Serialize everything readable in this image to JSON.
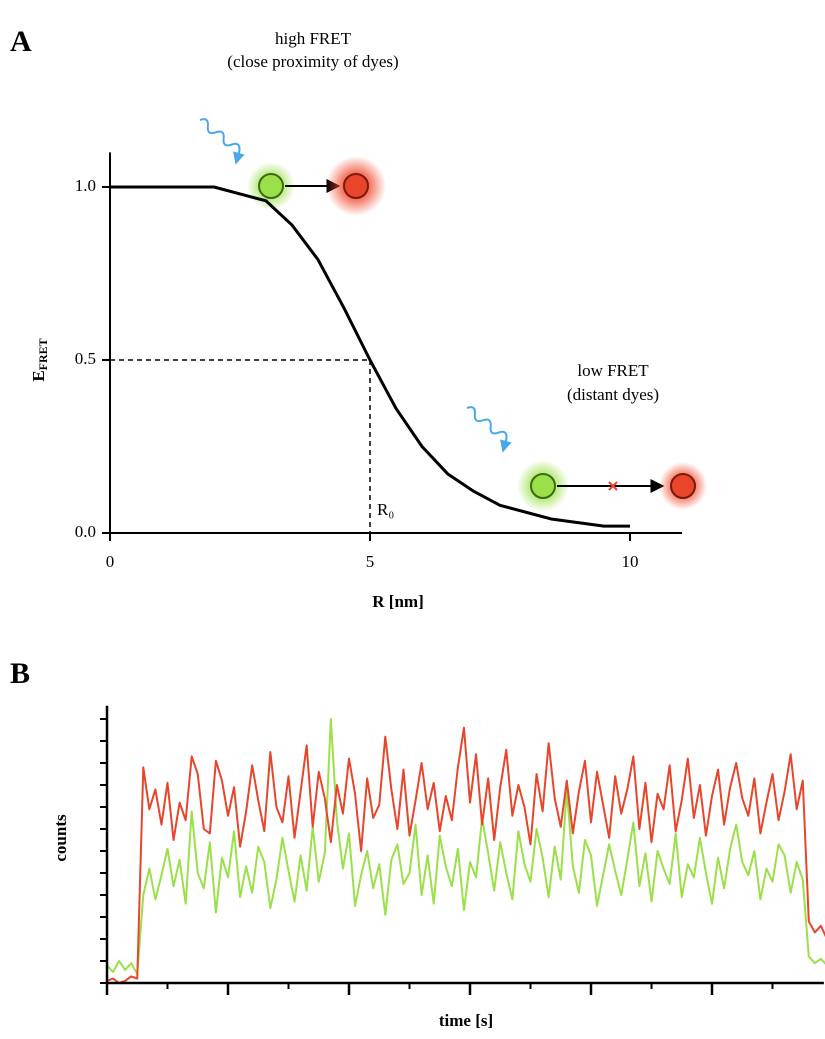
{
  "chart_data": [
    {
      "type": "line",
      "panel_label": "A",
      "xlabel": "R [nm]",
      "ylabel": "E",
      "ylabel_subscript": "FRET",
      "x": [
        0,
        0.5,
        1,
        1.5,
        2,
        2.5,
        3,
        3.5,
        4,
        4.5,
        5,
        5.5,
        6,
        6.5,
        7,
        7.5,
        8,
        8.5,
        9,
        9.5,
        10
      ],
      "series": [
        {
          "color": "#000000",
          "values": [
            1.0,
            1.0,
            1.0,
            1.0,
            1.0,
            0.98,
            0.96,
            0.89,
            0.79,
            0.65,
            0.5,
            0.36,
            0.25,
            0.17,
            0.12,
            0.08,
            0.06,
            0.04,
            0.03,
            0.02,
            0.02
          ]
        }
      ],
      "xlim": [
        0,
        11
      ],
      "ylim": [
        0,
        1.1
      ],
      "xticks": [
        0,
        5,
        10
      ],
      "yticks": [
        {
          "value": 0,
          "label": "0.0"
        },
        0.5,
        {
          "value": 1,
          "label": "1.0"
        }
      ],
      "reference": {
        "x": 5,
        "y": 0.5,
        "label": "R₀"
      },
      "annotations": {
        "high_title": "high FRET",
        "high_note": "(close proximity of dyes)",
        "low_title": "low FRET",
        "low_note": "(distant dyes)"
      }
    },
    {
      "type": "line",
      "panel_label": "B",
      "xlabel": "time [s]",
      "ylabel": "counts",
      "x": [
        0,
        0.05,
        0.1,
        0.15,
        0.2,
        0.25,
        0.3,
        0.35,
        0.4,
        0.45,
        0.5,
        0.55,
        0.6,
        0.65,
        0.7,
        0.75,
        0.8,
        0.85,
        0.9,
        0.95,
        1,
        1.05,
        1.1,
        1.15,
        1.2,
        1.25,
        1.3,
        1.35,
        1.4,
        1.45,
        1.5,
        1.55,
        1.6,
        1.65,
        1.7,
        1.75,
        1.8,
        1.85,
        1.9,
        1.95,
        2,
        2.05,
        2.1,
        2.15,
        2.2,
        2.25,
        2.3,
        2.35,
        2.4,
        2.45,
        2.5,
        2.55,
        2.6,
        2.65,
        2.7,
        2.75,
        2.8,
        2.85,
        2.9,
        2.95,
        3,
        3.05,
        3.1,
        3.15,
        3.2,
        3.25,
        3.3,
        3.35,
        3.4,
        3.45,
        3.5,
        3.55,
        3.6,
        3.65,
        3.7,
        3.75,
        3.8,
        3.85,
        3.9,
        3.95,
        4,
        4.05,
        4.1,
        4.15,
        4.2,
        4.25,
        4.3,
        4.35,
        4.4,
        4.45,
        4.5,
        4.55,
        4.6,
        4.65,
        4.7,
        4.75,
        4.8,
        4.85,
        4.9,
        4.95,
        5,
        5.05,
        5.1,
        5.15,
        5.2,
        5.25,
        5.3,
        5.35,
        5.4,
        5.45,
        5.5,
        5.55,
        5.6,
        5.65,
        5.7,
        5.75,
        5.8,
        5.85,
        5.9,
        5.95
      ],
      "series": [
        {
          "color": "#9be04a",
          "values": [
            0.8,
            0.5,
            1.0,
            0.6,
            0.9,
            0.4,
            4.0,
            5.2,
            3.8,
            4.9,
            6.1,
            4.4,
            5.6,
            3.6,
            7.8,
            5.0,
            4.3,
            6.4,
            3.2,
            5.7,
            4.8,
            6.9,
            3.9,
            5.3,
            4.1,
            6.2,
            5.5,
            3.4,
            4.7,
            6.6,
            5.1,
            3.7,
            5.8,
            4.2,
            7.1,
            4.6,
            5.9,
            12.0,
            7.4,
            5.2,
            6.8,
            3.5,
            4.9,
            6.0,
            4.3,
            5.4,
            3.1,
            5.6,
            6.3,
            4.5,
            5.0,
            7.2,
            4.0,
            5.8,
            3.6,
            6.7,
            5.3,
            4.4,
            6.1,
            3.3,
            5.5,
            4.8,
            7.5,
            5.9,
            4.2,
            6.4,
            5.0,
            3.8,
            6.9,
            5.4,
            4.6,
            7.0,
            5.7,
            3.9,
            6.2,
            4.7,
            8.8,
            5.3,
            4.1,
            6.5,
            5.8,
            3.5,
            4.9,
            6.3,
            5.1,
            4.0,
            5.6,
            7.3,
            4.4,
            5.9,
            3.7,
            6.0,
            5.2,
            4.5,
            6.8,
            3.9,
            5.4,
            4.8,
            6.6,
            5.0,
            3.6,
            5.7,
            4.3,
            6.1,
            7.2,
            5.5,
            4.9,
            6.0,
            3.8,
            5.2,
            4.6,
            6.3,
            5.8,
            4.1,
            5.5,
            4.7,
            1.2,
            0.9,
            1.1,
            0.8
          ]
        },
        {
          "color": "#e8452a",
          "values": [
            0.1,
            0.2,
            0.0,
            0.1,
            0.3,
            0.2,
            9.8,
            7.9,
            8.8,
            7.2,
            9.1,
            6.5,
            8.2,
            7.4,
            10.3,
            9.5,
            7.0,
            6.8,
            10.1,
            9.2,
            7.6,
            8.9,
            6.2,
            7.8,
            9.9,
            8.3,
            6.9,
            10.5,
            8.0,
            7.3,
            9.4,
            6.6,
            8.7,
            10.8,
            7.1,
            9.6,
            8.4,
            6.4,
            9.0,
            7.7,
            10.2,
            8.6,
            6.0,
            9.3,
            7.5,
            8.1,
            11.2,
            8.8,
            7.0,
            9.7,
            6.7,
            8.3,
            10.0,
            7.9,
            9.1,
            6.9,
            8.5,
            7.4,
            9.8,
            11.6,
            8.2,
            10.4,
            7.2,
            9.3,
            6.5,
            8.9,
            10.6,
            7.6,
            9.0,
            8.0,
            6.3,
            9.5,
            7.8,
            10.9,
            8.4,
            7.1,
            9.2,
            6.8,
            8.7,
            10.1,
            7.3,
            9.6,
            8.1,
            6.6,
            9.4,
            7.7,
            8.8,
            10.3,
            7.0,
            9.1,
            6.4,
            8.6,
            7.9,
            9.9,
            6.9,
            8.3,
            10.2,
            7.5,
            9.0,
            6.7,
            8.5,
            9.7,
            7.2,
            8.9,
            10.0,
            8.4,
            7.6,
            9.3,
            6.8,
            8.2,
            9.5,
            7.4,
            8.7,
            10.4,
            7.9,
            9.2,
            2.8,
            2.3,
            2.6,
            2.0
          ]
        }
      ],
      "xlim": [
        0,
        5.9
      ],
      "ylim": [
        0,
        12.6
      ],
      "xticks_major": [
        0,
        1,
        2,
        3,
        4,
        5
      ],
      "xticks_minor": [
        0.5,
        1.5,
        2.5,
        3.5,
        4.5,
        5.5
      ],
      "yticks": [
        0,
        1,
        2,
        3,
        4,
        5,
        6,
        7,
        8,
        9,
        10,
        11,
        12
      ]
    }
  ]
}
